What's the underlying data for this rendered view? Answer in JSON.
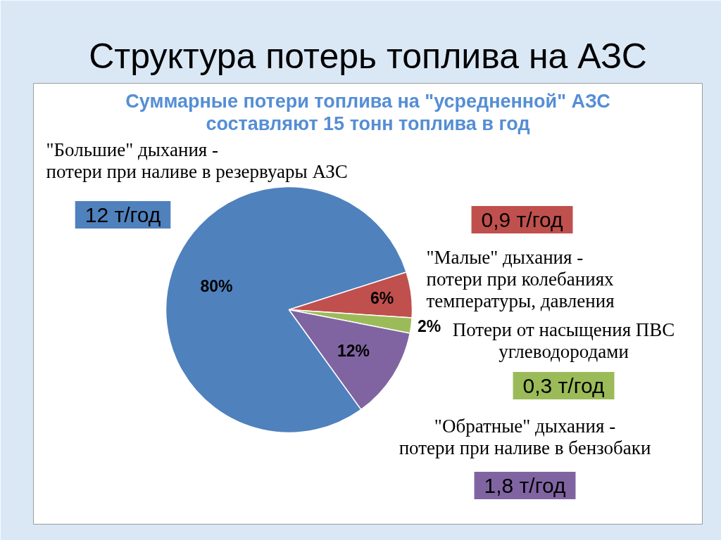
{
  "chart_data": {
    "type": "pie",
    "title": "Структура потерь топлива на АЗС",
    "subtitle": "Суммарные потери топлива на \"усредненной\" АЗС составляют 15 тонн топлива в год",
    "categories": [
      "\"Большие\" дыхания - потери при наливе в резервуары АЗС",
      "\"Малые\" дыхания - потери при колебаниях температуры, давления",
      "Потери от насыщения ПВС углеводородами",
      "\"Обратные\" дыхания - потери при наливе в бензобаки"
    ],
    "values": [
      80,
      6,
      2,
      12
    ],
    "colors": [
      "#4f81bd",
      "#c0504d",
      "#9bbb59",
      "#8064a2"
    ],
    "value_labels": [
      "80%",
      "6%",
      "2%",
      "12%"
    ],
    "annotations": [
      "12 т/год",
      "0,9 т/год",
      "0,3 т/год",
      "1,8 т/год"
    ]
  }
}
